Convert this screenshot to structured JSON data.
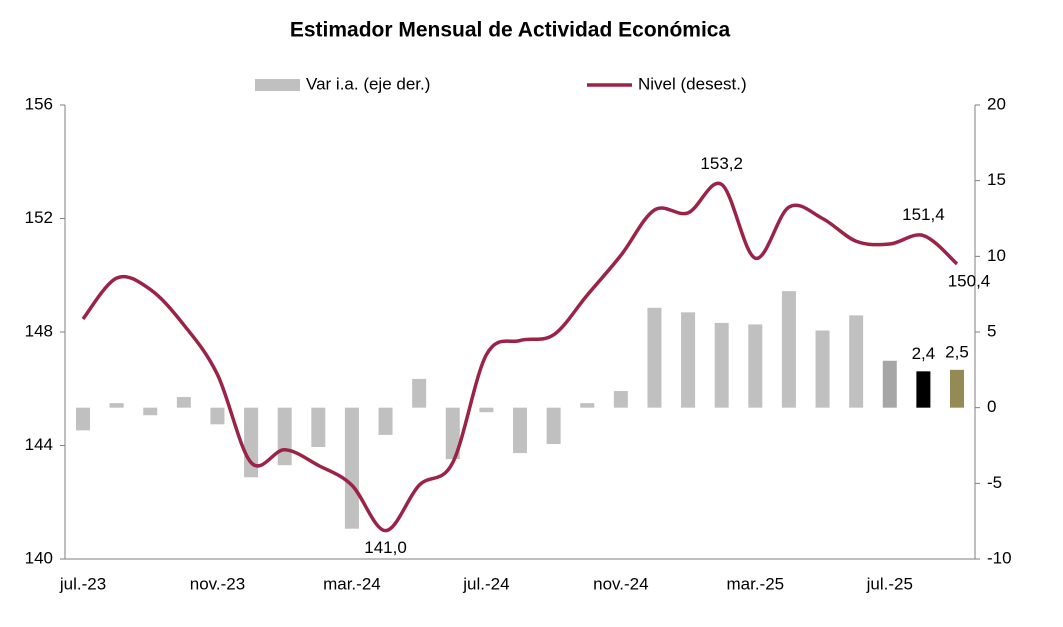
{
  "chart_data": {
    "type": "bar-line",
    "title": "Estimador Mensual de Actividad Económica",
    "categories": [
      "jul.-23",
      null,
      null,
      null,
      "nov.-23",
      null,
      null,
      null,
      "mar.-24",
      null,
      null,
      null,
      "jul.-24",
      null,
      null,
      null,
      "nov.-24",
      null,
      null,
      null,
      "mar.-25",
      null,
      null,
      null,
      "jul.-25",
      null,
      null
    ],
    "series": [
      {
        "name": "Var i.a. (eje der.)",
        "type": "bar",
        "axis": "y2",
        "color": "#c0c0c0",
        "colors": [
          "#c0c0c0",
          "#c0c0c0",
          "#c0c0c0",
          "#c0c0c0",
          "#c0c0c0",
          "#c0c0c0",
          "#c0c0c0",
          "#c0c0c0",
          "#c0c0c0",
          "#c0c0c0",
          "#c0c0c0",
          "#c0c0c0",
          "#c0c0c0",
          "#c0c0c0",
          "#c0c0c0",
          "#c0c0c0",
          "#c0c0c0",
          "#c0c0c0",
          "#c0c0c0",
          "#c0c0c0",
          "#c0c0c0",
          "#c0c0c0",
          "#c0c0c0",
          "#c0c0c0",
          "#a6a6a6",
          "#000000",
          "#948a54"
        ],
        "values": [
          -1.5,
          0.3,
          -0.5,
          0.7,
          -1.1,
          -4.6,
          -3.8,
          -2.6,
          -8.0,
          -1.8,
          1.9,
          -3.4,
          -0.3,
          -3.0,
          -2.4,
          0.3,
          1.1,
          6.6,
          6.3,
          5.6,
          5.5,
          7.7,
          5.1,
          6.1,
          3.1,
          2.4,
          2.5
        ],
        "value_labels": [
          null,
          null,
          null,
          null,
          null,
          null,
          null,
          null,
          null,
          null,
          null,
          null,
          null,
          null,
          null,
          null,
          null,
          null,
          null,
          null,
          null,
          null,
          null,
          null,
          null,
          "2,4",
          "2,5"
        ]
      },
      {
        "name": "Nivel (desest.)",
        "type": "line",
        "axis": "y",
        "color": "#9b2348",
        "values": [
          148.46,
          149.9,
          149.5,
          148.25,
          146.5,
          143.4,
          143.85,
          143.3,
          142.6,
          141.0,
          142.6,
          143.4,
          147.2,
          147.7,
          147.9,
          149.3,
          150.7,
          152.3,
          152.2,
          153.2,
          150.6,
          152.4,
          152.0,
          151.2,
          151.1,
          151.4,
          150.4
        ],
        "value_labels": [
          null,
          null,
          null,
          null,
          null,
          null,
          null,
          null,
          null,
          "141,0",
          null,
          null,
          null,
          null,
          null,
          null,
          null,
          null,
          null,
          "153,2",
          null,
          null,
          null,
          null,
          null,
          "151,4",
          "150,4"
        ]
      }
    ],
    "ylim": [
      140,
      156
    ],
    "yticks": [
      140,
      144,
      148,
      152,
      156
    ],
    "y2lim": [
      -10,
      20
    ],
    "y2ticks": [
      -10,
      -5,
      0,
      5,
      10,
      15,
      20
    ],
    "legend": "top"
  }
}
